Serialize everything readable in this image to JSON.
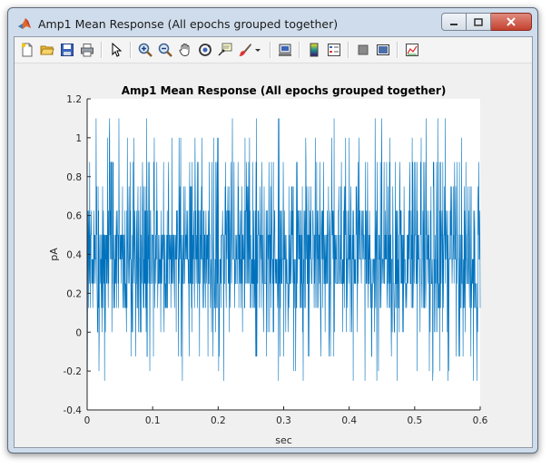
{
  "window": {
    "title": "Amp1 Mean Response (All epochs grouped together)"
  },
  "toolbar": {
    "buttons": [
      {
        "name": "new-figure",
        "icon": "new-file-icon"
      },
      {
        "name": "open-file",
        "icon": "folder-open-icon"
      },
      {
        "name": "save-figure",
        "icon": "save-icon"
      },
      {
        "name": "print-figure",
        "icon": "printer-icon"
      },
      {
        "name": "edit-plot",
        "icon": "pointer-icon"
      },
      {
        "name": "zoom-in",
        "icon": "zoom-in-icon"
      },
      {
        "name": "zoom-out",
        "icon": "zoom-out-icon"
      },
      {
        "name": "pan",
        "icon": "hand-icon"
      },
      {
        "name": "rotate-3d",
        "icon": "rotate-icon"
      },
      {
        "name": "data-cursor",
        "icon": "data-cursor-icon"
      },
      {
        "name": "brush",
        "icon": "brush-icon"
      },
      {
        "name": "link-plot",
        "icon": "link-icon"
      },
      {
        "name": "insert-colorbar",
        "icon": "colorbar-icon"
      },
      {
        "name": "insert-legend",
        "icon": "legend-icon"
      },
      {
        "name": "hide-plot-tools",
        "icon": "hide-tools-icon"
      },
      {
        "name": "show-plot-tools",
        "icon": "show-tools-icon"
      },
      {
        "name": "dock-figure",
        "icon": "dock-icon"
      }
    ]
  },
  "colors": {
    "line": "#0072BD",
    "axes_bg": "#ffffff",
    "figure_bg": "#f0f0f0"
  },
  "chart_data": {
    "type": "line",
    "title": "Amp1 Mean Response (All epochs grouped together)",
    "xlabel": "sec",
    "ylabel": "pA",
    "xlim": [
      0,
      0.6
    ],
    "ylim": [
      -0.4,
      1.2
    ],
    "xticks": [
      0,
      0.1,
      0.2,
      0.3,
      0.4,
      0.5,
      0.6
    ],
    "xtick_labels": [
      "0",
      "0.1",
      "0.2",
      "0.3",
      "0.4",
      "0.5",
      "0.6"
    ],
    "yticks": [
      -0.4,
      -0.2,
      0,
      0.2,
      0.4,
      0.6,
      0.8,
      1,
      1.2
    ],
    "ytick_labels": [
      "-0.4",
      "-0.2",
      "0",
      "0.2",
      "0.4",
      "0.6",
      "0.8",
      "1",
      "1.2"
    ],
    "grid": false,
    "series": [
      {
        "description_levels": "dense noisy trace; dominant quantized levels approx 0.125, 0.25, 0.375, 0.5, 0.625; occasional excursions from -0.25 to 1.1",
        "x_range": [
          0,
          0.6
        ],
        "base_levels": [
          0.125,
          0.25,
          0.375,
          0.5,
          0.625
        ],
        "min": -0.25,
        "max": 1.1
      }
    ]
  }
}
